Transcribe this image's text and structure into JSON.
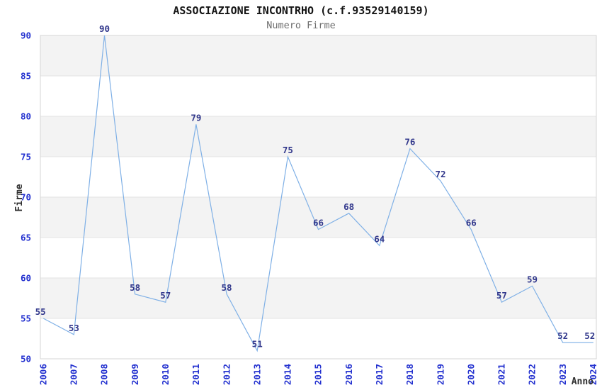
{
  "chart_data": {
    "type": "line",
    "title": "ASSOCIAZIONE INCONTRHO (c.f.93529140159)",
    "subtitle": "Numero Firme",
    "xlabel": "Anno",
    "ylabel": "Firme",
    "categories": [
      "2006",
      "2007",
      "2008",
      "2009",
      "2010",
      "2011",
      "2012",
      "2013",
      "2014",
      "2015",
      "2016",
      "2017",
      "2018",
      "2019",
      "2020",
      "2021",
      "2022",
      "2023",
      "2024"
    ],
    "values": [
      55,
      53,
      90,
      58,
      57,
      79,
      58,
      51,
      75,
      66,
      68,
      64,
      76,
      72,
      66,
      57,
      59,
      52,
      52
    ],
    "ylim": [
      50,
      90
    ],
    "yticks": [
      50,
      55,
      60,
      65,
      70,
      75,
      80,
      85,
      90
    ],
    "point_labels_visible": true,
    "legend": "none",
    "grid": "horizontal-bands",
    "colors": {
      "line": "#7fb0e6",
      "tick_label": "#2230cf",
      "point_label": "#32388c",
      "axis_title": "#2f2f2f",
      "title": "#141414",
      "subtitle": "#6e6e6e",
      "band": "#f3f3f3",
      "gridline": "#e3e3e3",
      "plot_border": "#d5d5d5",
      "background": "#ffffff"
    }
  }
}
